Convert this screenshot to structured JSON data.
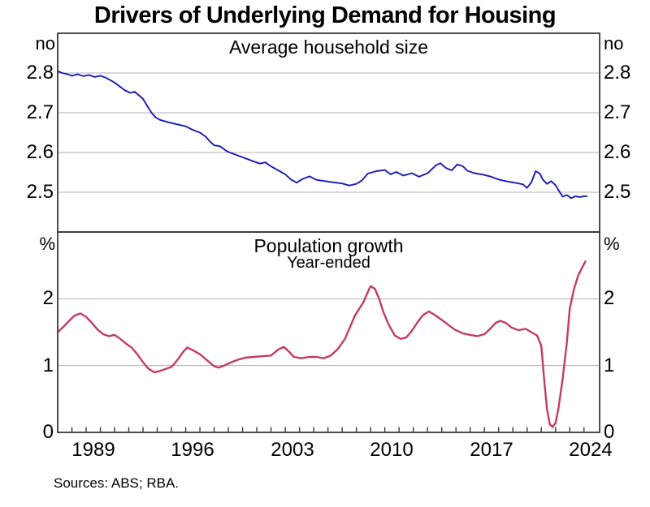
{
  "header": {
    "title": "Drivers of Underlying Demand for Housing"
  },
  "footer": {
    "sources": "Sources: ABS; RBA."
  },
  "x_axis": {
    "min_year": 1987,
    "max_year": 2025.1,
    "minor_tick_step_years": 1,
    "label_years": [
      1989,
      1996,
      2003,
      2010,
      2017,
      2024
    ],
    "labels": [
      "1989",
      "1996",
      "2003",
      "2010",
      "2017",
      "2024"
    ]
  },
  "colors": {
    "household_line": "#1a1ab9",
    "population_line": "#c43c63",
    "gridline": "#b0b0b0",
    "frame": "#3a3a3a"
  },
  "chart_data": [
    {
      "type": "line",
      "panel": "top",
      "title": "Average household size",
      "unit": "no",
      "ylim": [
        2.4,
        2.9
      ],
      "yticks": [
        2.5,
        2.6,
        2.7,
        2.8
      ],
      "grid": true,
      "series": [
        {
          "name": "Average household size",
          "color": "#1a1ab9",
          "x": [
            1987.0,
            1987.3,
            1987.6,
            1988.0,
            1988.4,
            1988.8,
            1989.2,
            1989.6,
            1990.0,
            1990.4,
            1990.9,
            1991.3,
            1991.7,
            1992.1,
            1992.4,
            1992.7,
            1993.0,
            1993.3,
            1993.6,
            1993.9,
            1994.2,
            1994.6,
            1995.0,
            1995.5,
            1996.0,
            1996.5,
            1997.0,
            1997.4,
            1997.7,
            1998.0,
            1998.4,
            1998.9,
            1999.4,
            2000.0,
            2000.6,
            2001.2,
            2001.6,
            2002.0,
            2002.5,
            2003.0,
            2003.4,
            2003.8,
            2004.2,
            2004.7,
            2005.2,
            2005.8,
            2006.4,
            2007.0,
            2007.5,
            2008.0,
            2008.4,
            2008.8,
            2009.4,
            2010.0,
            2010.4,
            2010.8,
            2011.3,
            2011.9,
            2012.4,
            2013.0,
            2013.6,
            2013.9,
            2014.3,
            2014.7,
            2015.1,
            2015.5,
            2015.8,
            2016.3,
            2016.8,
            2017.4,
            2018.0,
            2018.5,
            2019.1,
            2019.7,
            2020.0,
            2020.3,
            2020.6,
            2020.9,
            2021.1,
            2021.4,
            2021.7,
            2022.0,
            2022.3,
            2022.5,
            2022.8,
            2023.1,
            2023.4,
            2023.7,
            2024.0,
            2024.2
          ],
          "values": [
            2.805,
            2.8,
            2.798,
            2.793,
            2.797,
            2.792,
            2.795,
            2.79,
            2.793,
            2.788,
            2.778,
            2.768,
            2.757,
            2.75,
            2.753,
            2.744,
            2.735,
            2.717,
            2.7,
            2.688,
            2.682,
            2.678,
            2.674,
            2.67,
            2.666,
            2.657,
            2.65,
            2.64,
            2.628,
            2.618,
            2.616,
            2.603,
            2.596,
            2.588,
            2.58,
            2.572,
            2.575,
            2.565,
            2.555,
            2.545,
            2.532,
            2.524,
            2.533,
            2.54,
            2.531,
            2.528,
            2.525,
            2.522,
            2.517,
            2.521,
            2.53,
            2.547,
            2.553,
            2.556,
            2.545,
            2.551,
            2.542,
            2.548,
            2.539,
            2.548,
            2.568,
            2.573,
            2.561,
            2.555,
            2.57,
            2.565,
            2.554,
            2.548,
            2.545,
            2.54,
            2.532,
            2.528,
            2.524,
            2.52,
            2.511,
            2.525,
            2.553,
            2.547,
            2.532,
            2.521,
            2.528,
            2.518,
            2.5,
            2.489,
            2.493,
            2.485,
            2.49,
            2.488,
            2.49,
            2.49
          ]
        }
      ]
    },
    {
      "type": "line",
      "panel": "bottom",
      "title": "Population growth",
      "subtitle": "Year-ended",
      "unit": "%",
      "ylim": [
        0,
        3
      ],
      "yticks": [
        0,
        1,
        2
      ],
      "grid": true,
      "series": [
        {
          "name": "Population growth (year-ended)",
          "color": "#c43c63",
          "x": [
            1987.0,
            1987.4,
            1987.8,
            1988.2,
            1988.6,
            1989.0,
            1989.4,
            1989.8,
            1990.2,
            1990.6,
            1991.0,
            1991.4,
            1991.8,
            1992.2,
            1992.6,
            1993.0,
            1993.4,
            1993.8,
            1994.2,
            1994.6,
            1995.0,
            1995.4,
            1995.8,
            1996.1,
            1996.5,
            1997.0,
            1997.5,
            1998.0,
            1998.3,
            1998.7,
            1999.2,
            1999.7,
            2000.2,
            2000.8,
            2001.4,
            2002.0,
            2002.5,
            2002.9,
            2003.3,
            2003.6,
            2004.1,
            2004.7,
            2005.2,
            2005.7,
            2006.2,
            2006.7,
            2007.2,
            2007.6,
            2007.9,
            2008.2,
            2008.5,
            2008.8,
            2009.0,
            2009.3,
            2009.6,
            2009.9,
            2010.3,
            2010.7,
            2011.1,
            2011.5,
            2011.9,
            2012.3,
            2012.7,
            2013.1,
            2013.5,
            2013.9,
            2014.4,
            2014.9,
            2015.5,
            2016.0,
            2016.5,
            2017.0,
            2017.4,
            2017.8,
            2018.1,
            2018.5,
            2018.9,
            2019.4,
            2019.9,
            2020.3,
            2020.7,
            2021.0,
            2021.2,
            2021.4,
            2021.6,
            2021.8,
            2022.0,
            2022.2,
            2022.5,
            2022.8,
            2023.0,
            2023.3,
            2023.6,
            2023.9,
            2024.1
          ],
          "values": [
            1.5,
            1.58,
            1.67,
            1.75,
            1.78,
            1.73,
            1.64,
            1.54,
            1.47,
            1.44,
            1.46,
            1.4,
            1.33,
            1.27,
            1.17,
            1.05,
            0.95,
            0.9,
            0.92,
            0.95,
            0.98,
            1.08,
            1.2,
            1.27,
            1.23,
            1.17,
            1.08,
            0.99,
            0.97,
            1.0,
            1.05,
            1.09,
            1.12,
            1.13,
            1.14,
            1.15,
            1.24,
            1.28,
            1.2,
            1.13,
            1.11,
            1.13,
            1.13,
            1.11,
            1.15,
            1.25,
            1.4,
            1.6,
            1.75,
            1.85,
            1.95,
            2.1,
            2.19,
            2.15,
            2.0,
            1.8,
            1.6,
            1.45,
            1.4,
            1.42,
            1.52,
            1.65,
            1.76,
            1.81,
            1.76,
            1.7,
            1.62,
            1.54,
            1.48,
            1.46,
            1.44,
            1.47,
            1.55,
            1.64,
            1.67,
            1.64,
            1.57,
            1.53,
            1.55,
            1.5,
            1.45,
            1.3,
            0.8,
            0.35,
            0.12,
            0.08,
            0.14,
            0.35,
            0.8,
            1.35,
            1.85,
            2.15,
            2.35,
            2.48,
            2.56
          ]
        }
      ]
    }
  ]
}
